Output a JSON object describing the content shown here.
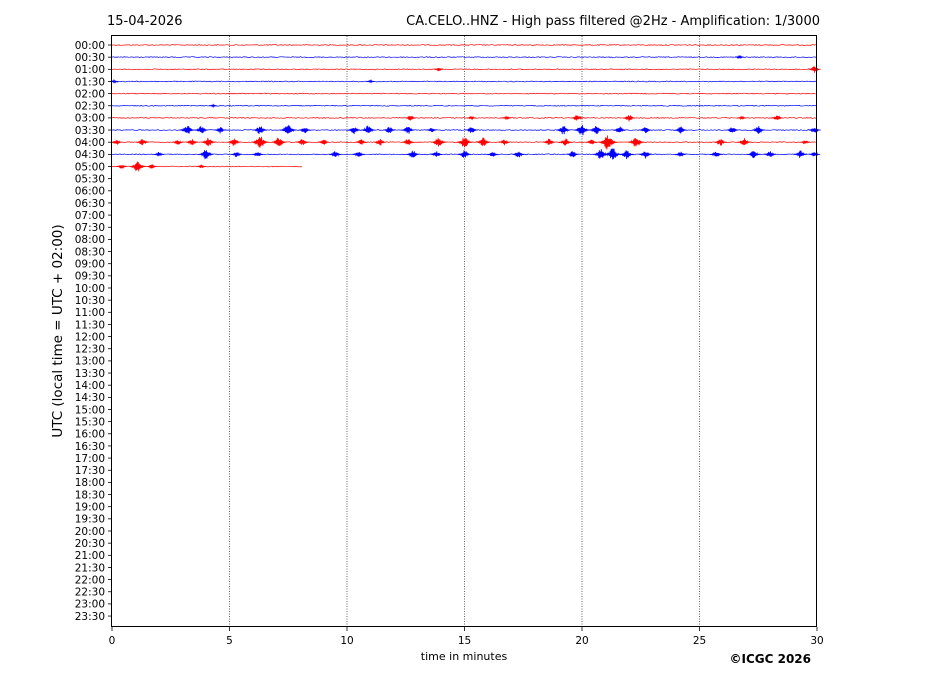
{
  "header": {
    "date": "15-04-2026",
    "title": "CA.CELO..HNZ - High pass filtered @2Hz - Amplification: 1/3000"
  },
  "footer": {
    "copyright": "©ICGC 2026"
  },
  "chart_data": {
    "type": "line",
    "title": "CA.CELO..HNZ - High pass filtered @2Hz - Amplification: 1/3000",
    "xlabel": "time in minutes",
    "ylabel": "UTC (local time = UTC + 02:00)",
    "xlim": [
      0,
      30
    ],
    "xticks": [
      "0",
      "5",
      "10",
      "15",
      "20",
      "25",
      "30"
    ],
    "vertical_gridlines": [
      5,
      10,
      15,
      20,
      25
    ],
    "row_labels": [
      "00:00",
      "00:30",
      "01:00",
      "01:30",
      "02:00",
      "02:30",
      "03:00",
      "03:30",
      "04:00",
      "04:30",
      "05:00",
      "05:30",
      "06:00",
      "06:30",
      "07:00",
      "07:30",
      "08:00",
      "08:30",
      "09:00",
      "09:30",
      "10:00",
      "10:30",
      "11:00",
      "11:30",
      "12:00",
      "12:30",
      "13:00",
      "13:30",
      "14:00",
      "14:30",
      "15:00",
      "15:30",
      "16:00",
      "16:30",
      "17:00",
      "17:30",
      "18:00",
      "18:30",
      "19:00",
      "19:30",
      "20:00",
      "20:30",
      "21:00",
      "21:30",
      "22:00",
      "22:30",
      "23:00",
      "23:30"
    ],
    "colors": {
      "even_rows": "#ff0000",
      "odd_rows": "#0000ff",
      "grid": "#000000"
    },
    "traces": [
      {
        "row": "00:00",
        "color": "#ff0000",
        "end_minute": 30,
        "bursts": []
      },
      {
        "row": "00:30",
        "color": "#0000ff",
        "end_minute": 30,
        "bursts": [
          {
            "t": 26.7,
            "amp": 0.3
          }
        ]
      },
      {
        "row": "01:00",
        "color": "#ff0000",
        "end_minute": 30,
        "bursts": [
          {
            "t": 13.9,
            "amp": 0.3
          },
          {
            "t": 29.9,
            "amp": 0.6
          }
        ]
      },
      {
        "row": "01:30",
        "color": "#0000ff",
        "end_minute": 30,
        "bursts": [
          {
            "t": 0.1,
            "amp": 0.2
          },
          {
            "t": 11.0,
            "amp": 0.2
          }
        ]
      },
      {
        "row": "02:00",
        "color": "#ff0000",
        "end_minute": 30,
        "bursts": []
      },
      {
        "row": "02:30",
        "color": "#0000ff",
        "end_minute": 30,
        "bursts": [
          {
            "t": 4.3,
            "amp": 0.2
          }
        ]
      },
      {
        "row": "03:00",
        "color": "#ff0000",
        "end_minute": 30,
        "bursts": [
          {
            "t": 12.7,
            "amp": 0.5
          },
          {
            "t": 15.3,
            "amp": 0.3
          },
          {
            "t": 16.8,
            "amp": 0.3
          },
          {
            "t": 19.8,
            "amp": 0.6
          },
          {
            "t": 22.0,
            "amp": 0.6
          },
          {
            "t": 26.8,
            "amp": 0.3
          },
          {
            "t": 28.3,
            "amp": 0.5
          }
        ]
      },
      {
        "row": "03:30",
        "color": "#0000ff",
        "end_minute": 30,
        "bursts": [
          {
            "t": 3.2,
            "amp": 0.9
          },
          {
            "t": 3.8,
            "amp": 0.7
          },
          {
            "t": 4.6,
            "amp": 0.6
          },
          {
            "t": 6.3,
            "amp": 0.8
          },
          {
            "t": 7.5,
            "amp": 1.0
          },
          {
            "t": 8.2,
            "amp": 0.6
          },
          {
            "t": 10.3,
            "amp": 0.7
          },
          {
            "t": 10.9,
            "amp": 0.8
          },
          {
            "t": 11.8,
            "amp": 0.6
          },
          {
            "t": 12.6,
            "amp": 0.7
          },
          {
            "t": 13.6,
            "amp": 0.4
          },
          {
            "t": 15.3,
            "amp": 0.6
          },
          {
            "t": 19.2,
            "amp": 0.8
          },
          {
            "t": 20.0,
            "amp": 1.0
          },
          {
            "t": 20.6,
            "amp": 0.8
          },
          {
            "t": 21.6,
            "amp": 0.6
          },
          {
            "t": 22.7,
            "amp": 0.6
          },
          {
            "t": 24.2,
            "amp": 0.6
          },
          {
            "t": 26.4,
            "amp": 0.6
          },
          {
            "t": 27.5,
            "amp": 0.7
          },
          {
            "t": 29.9,
            "amp": 0.6
          }
        ]
      },
      {
        "row": "04:00",
        "color": "#ff0000",
        "end_minute": 30,
        "bursts": [
          {
            "t": 0.2,
            "amp": 0.5
          },
          {
            "t": 1.3,
            "amp": 0.6
          },
          {
            "t": 2.8,
            "amp": 0.5
          },
          {
            "t": 3.4,
            "amp": 0.6
          },
          {
            "t": 4.1,
            "amp": 0.8
          },
          {
            "t": 5.2,
            "amp": 0.7
          },
          {
            "t": 6.3,
            "amp": 1.1
          },
          {
            "t": 7.1,
            "amp": 0.9
          },
          {
            "t": 8.1,
            "amp": 0.6
          },
          {
            "t": 9.0,
            "amp": 0.5
          },
          {
            "t": 10.6,
            "amp": 0.5
          },
          {
            "t": 11.4,
            "amp": 0.6
          },
          {
            "t": 12.6,
            "amp": 0.6
          },
          {
            "t": 13.9,
            "amp": 0.9
          },
          {
            "t": 15.0,
            "amp": 1.0
          },
          {
            "t": 15.8,
            "amp": 0.8
          },
          {
            "t": 16.7,
            "amp": 0.5
          },
          {
            "t": 18.6,
            "amp": 0.6
          },
          {
            "t": 19.3,
            "amp": 0.7
          },
          {
            "t": 20.4,
            "amp": 0.5
          },
          {
            "t": 21.1,
            "amp": 1.3
          },
          {
            "t": 22.3,
            "amp": 1.0
          },
          {
            "t": 25.9,
            "amp": 0.6
          },
          {
            "t": 26.9,
            "amp": 0.7
          },
          {
            "t": 29.5,
            "amp": 0.4
          }
        ]
      },
      {
        "row": "04:30",
        "color": "#0000ff",
        "end_minute": 30,
        "bursts": [
          {
            "t": 2.0,
            "amp": 0.4
          },
          {
            "t": 4.0,
            "amp": 0.9
          },
          {
            "t": 5.3,
            "amp": 0.5
          },
          {
            "t": 6.2,
            "amp": 0.5
          },
          {
            "t": 9.5,
            "amp": 0.6
          },
          {
            "t": 10.5,
            "amp": 0.6
          },
          {
            "t": 12.8,
            "amp": 0.7
          },
          {
            "t": 13.8,
            "amp": 0.6
          },
          {
            "t": 15.0,
            "amp": 0.7
          },
          {
            "t": 16.2,
            "amp": 0.5
          },
          {
            "t": 17.3,
            "amp": 0.6
          },
          {
            "t": 19.6,
            "amp": 0.6
          },
          {
            "t": 20.8,
            "amp": 1.0
          },
          {
            "t": 21.3,
            "amp": 1.1
          },
          {
            "t": 21.9,
            "amp": 0.8
          },
          {
            "t": 22.7,
            "amp": 0.7
          },
          {
            "t": 24.2,
            "amp": 0.5
          },
          {
            "t": 25.7,
            "amp": 0.6
          },
          {
            "t": 27.3,
            "amp": 0.7
          },
          {
            "t": 28.0,
            "amp": 0.6
          },
          {
            "t": 29.3,
            "amp": 0.7
          },
          {
            "t": 29.9,
            "amp": 0.5
          }
        ]
      },
      {
        "row": "05:00",
        "color": "#ff0000",
        "end_minute": 8.1,
        "bursts": [
          {
            "t": 0.4,
            "amp": 0.4
          },
          {
            "t": 1.1,
            "amp": 1.0
          },
          {
            "t": 1.7,
            "amp": 0.4
          },
          {
            "t": 3.8,
            "amp": 0.3
          }
        ]
      }
    ]
  }
}
